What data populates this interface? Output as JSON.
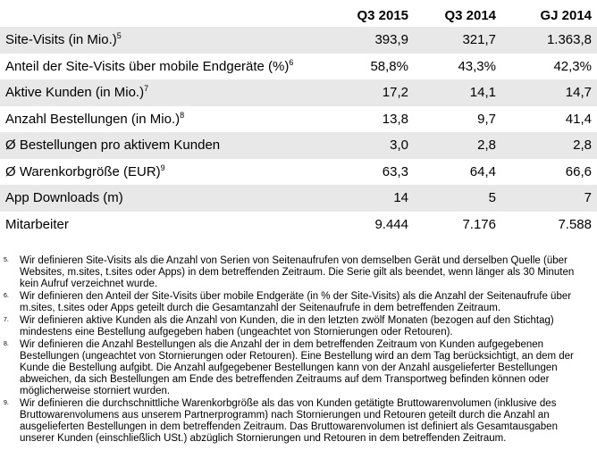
{
  "table": {
    "headers": [
      "",
      "Q3 2015",
      "Q3 2014",
      "GJ 2014"
    ],
    "rows": [
      {
        "label": "Site-Visits (in Mio.)",
        "sup": "5",
        "values": [
          "393,9",
          "321,7",
          "1.363,8"
        ],
        "shaded": true
      },
      {
        "label": "Anteil der Site-Visits über mobile Endgeräte (%)",
        "sup": "6",
        "values": [
          "58,8%",
          "43,3%",
          "42,3%"
        ],
        "shaded": false
      },
      {
        "label": "Aktive Kunden (in Mio.)",
        "sup": "7",
        "values": [
          "17,2",
          "14,1",
          "14,7"
        ],
        "shaded": true
      },
      {
        "label": "Anzahl Bestellungen (in Mio.)",
        "sup": "8",
        "values": [
          "13,8",
          "9,7",
          "41,4"
        ],
        "shaded": false
      },
      {
        "label": "Ø Bestellungen pro aktivem Kunden",
        "sup": "",
        "values": [
          "3,0",
          "2,8",
          "2,8"
        ],
        "shaded": true
      },
      {
        "label": "Ø Warenkorbgröße (EUR)",
        "sup": "9",
        "values": [
          "63,3",
          "64,4",
          "66,6"
        ],
        "shaded": false
      },
      {
        "label": "App Downloads (m)",
        "sup": "",
        "values": [
          "14",
          "5",
          "7"
        ],
        "shaded": true
      },
      {
        "label": "Mitarbeiter",
        "sup": "",
        "values": [
          "9.444",
          "7.176",
          "7.588"
        ],
        "shaded": false
      }
    ]
  },
  "footnotes": [
    {
      "marker": "5.",
      "text": "Wir definieren Site-Visits als die Anzahl von Serien von Seitenaufrufen von demselben Gerät und derselben Quelle (über Websites, m.sites, t.sites oder Apps) in dem betreffenden Zeitraum. Die Serie gilt als beendet, wenn länger als 30 Minuten kein Aufruf verzeichnet wurde."
    },
    {
      "marker": "6.",
      "text": "Wir definieren den Anteil der Site-Visits über mobile Endgeräte (in % der Site-Visits) als die Anzahl der Seitenaufrufe über m.sites, t.sites oder Apps geteilt durch die Gesamtanzahl der Seitenaufrufe in dem betreffenden Zeitraum."
    },
    {
      "marker": "7.",
      "text": "Wir definieren aktive Kunden als die Anzahl von Kunden, die in den letzten zwölf Monaten (bezogen auf den Stichtag) mindestens eine Bestellung aufgegeben haben (ungeachtet von Stornierungen oder Retouren)."
    },
    {
      "marker": "8.",
      "text": "Wir definieren die Anzahl Bestellungen als die Anzahl der in dem betreffenden Zeitraum von Kunden aufgegebenen Bestellungen (ungeachtet von Stornierungen oder Retouren). Eine Bestellung wird an dem Tag berücksichtigt, an dem der Kunde die Bestellung aufgibt. Die Anzahl aufgegebener Bestellungen kann von der Anzahl ausgelieferter Bestellungen abweichen, da sich Bestellungen am Ende des betreffenden Zeitraums auf dem Transportweg befinden können oder möglicherweise storniert wurden."
    },
    {
      "marker": "9.",
      "text": "Wir definieren die durchschnittliche Warenkorbgröße als das von Kunden getätigte Bruttowarenvolumen (inklusive des Bruttowarenvolumens aus unserem Partnerprogramm) nach Stornierungen und Retouren geteilt durch die Anzahl an ausgelieferten Bestellungen in dem betreffenden Zeitraum. Das Bruttowarenvolumen ist definiert als Gesamtausgaben unserer Kunden (einschließlich USt.) abzüglich Stornierungen und Retouren in dem betreffenden Zeitraum."
    }
  ]
}
